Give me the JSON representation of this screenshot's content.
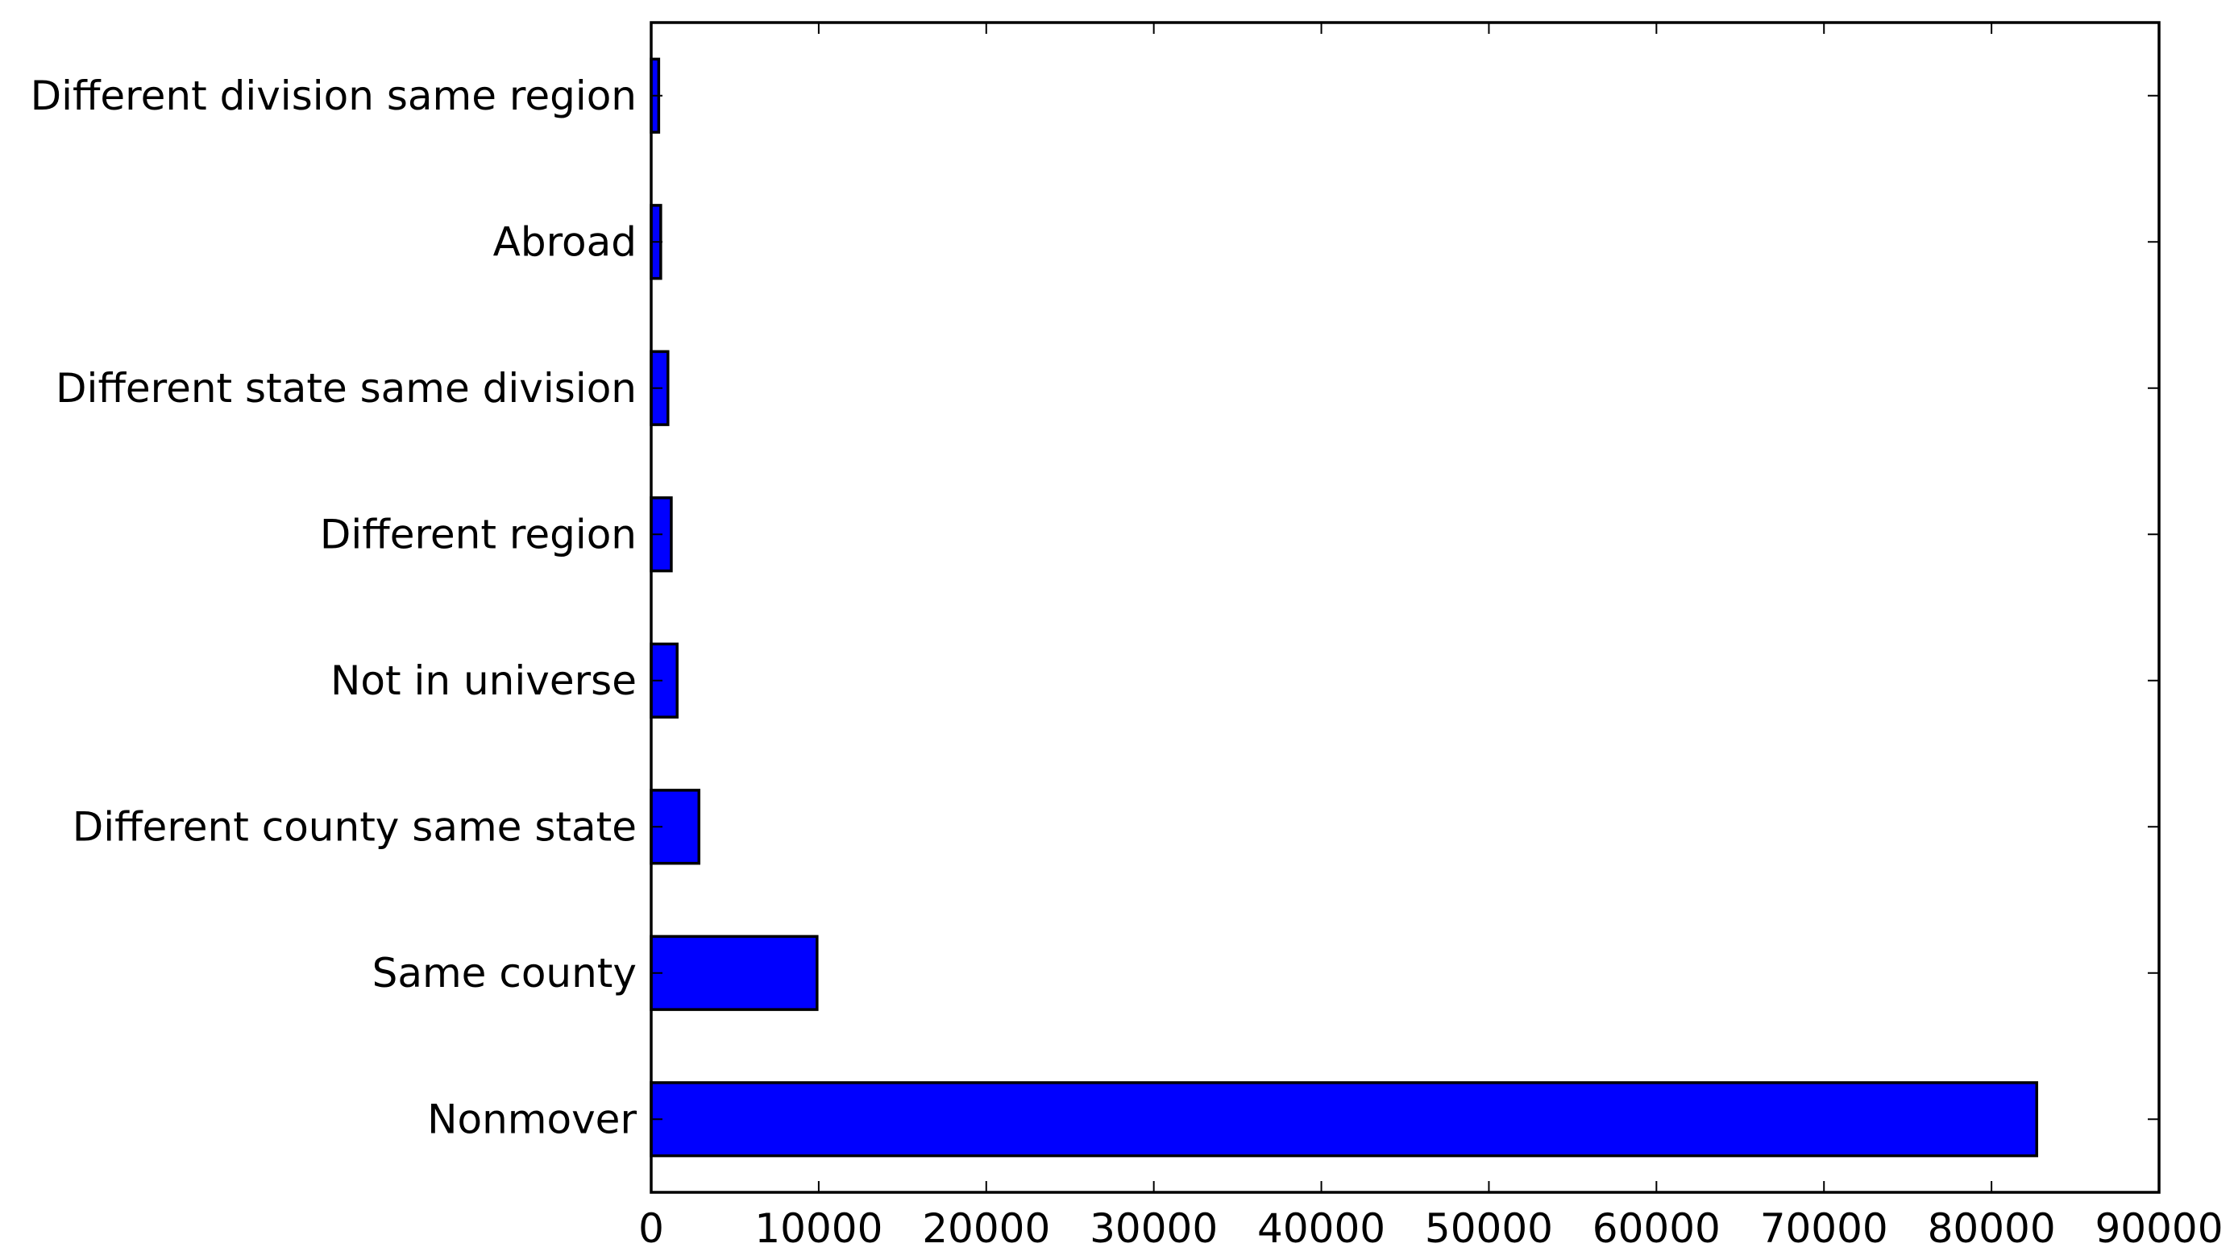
{
  "chart_data": {
    "type": "bar",
    "orientation": "horizontal",
    "categories": [
      "Different division same region",
      "Abroad",
      "Different state same division",
      "Different region",
      "Not in universe",
      "Different county same state",
      "Same county",
      "Nonmover"
    ],
    "values": [
      450,
      570,
      1000,
      1200,
      1550,
      2850,
      9900,
      82700
    ],
    "xlim": [
      0,
      90000
    ],
    "xticks": [
      0,
      10000,
      20000,
      30000,
      40000,
      50000,
      60000,
      70000,
      80000,
      90000
    ],
    "title": "",
    "xlabel": "",
    "ylabel": "",
    "grid": false,
    "bar_color": "#0000ff",
    "edge_color": "#000000"
  }
}
